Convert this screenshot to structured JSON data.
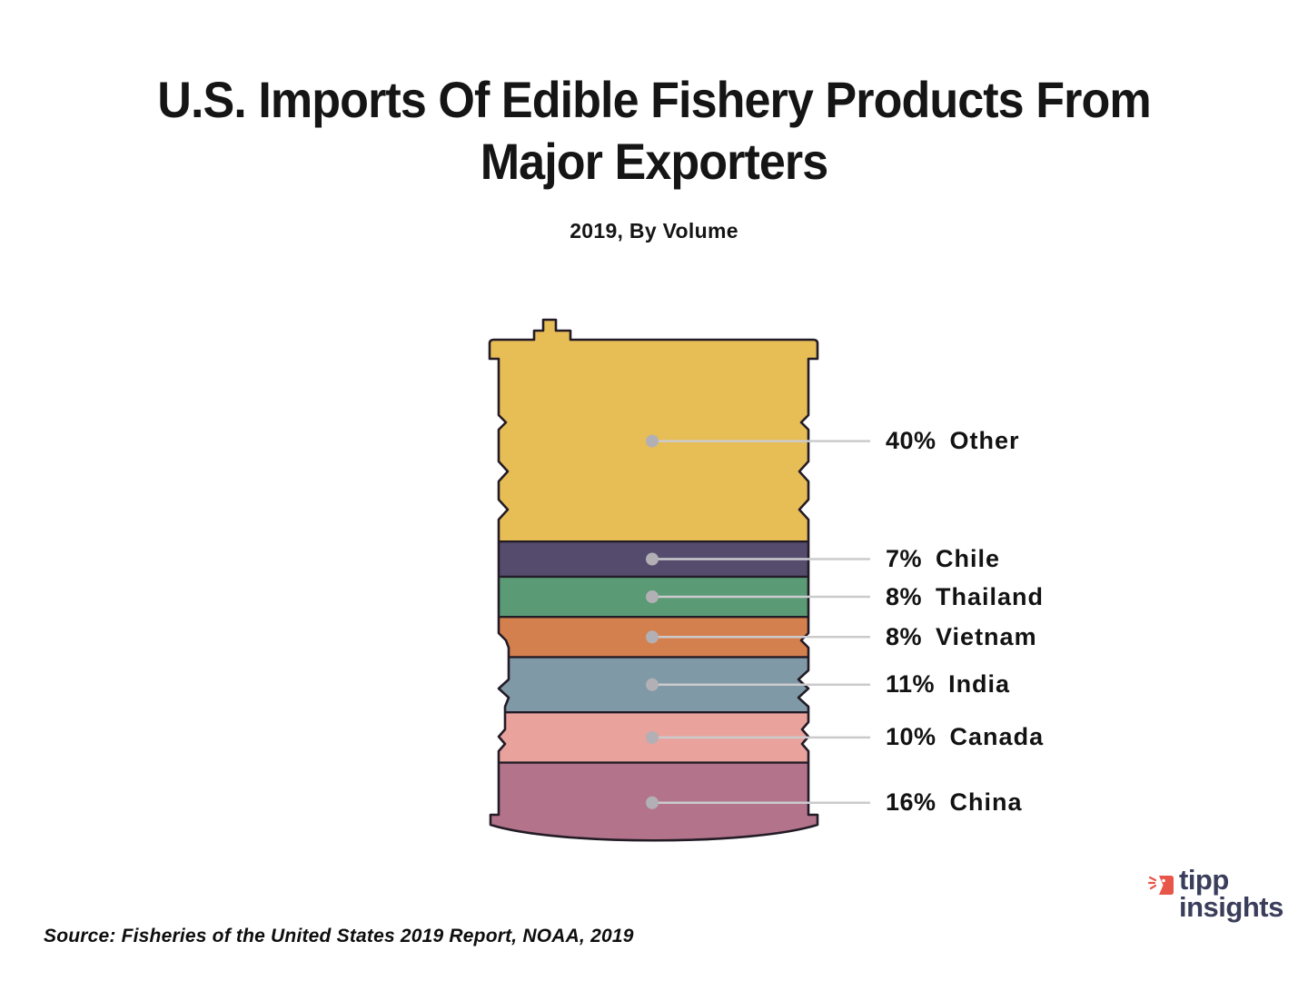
{
  "title": {
    "line1": "U.S. Imports Of Edible Fishery Products From",
    "line2": "Major Exporters"
  },
  "subtitle": "2019, By Volume",
  "source_note": "Source: Fisheries of the United States 2019 Report, NOAA, 2019",
  "logo": {
    "line1": "tipp",
    "line2": "insights",
    "icon": "tippinsights-flag-icon",
    "brand_navy": "#3a3e5b",
    "brand_red": "#e8564a"
  },
  "chart_data": {
    "type": "pie",
    "variant": "stacked-barrel-pictogram",
    "title": "U.S. Imports Of Edible Fishery Products From Major Exporters",
    "subtitle": "2019, By Volume",
    "unit": "%",
    "legend_position": "right-callouts",
    "outline_color": "#231c26",
    "callout_line_color": "#cbcbce",
    "callout_dot_color": "#b2b0b4",
    "segments": [
      {
        "label": "Other",
        "value": 40,
        "value_text": "40%",
        "color": "#e7bd56"
      },
      {
        "label": "Chile",
        "value": 7,
        "value_text": "7%",
        "color": "#554b6d"
      },
      {
        "label": "Thailand",
        "value": 8,
        "value_text": "8%",
        "color": "#5a9a75"
      },
      {
        "label": "Vietnam",
        "value": 8,
        "value_text": "8%",
        "color": "#d47f4e"
      },
      {
        "label": "India",
        "value": 11,
        "value_text": "11%",
        "color": "#7f99a6"
      },
      {
        "label": "Canada",
        "value": 10,
        "value_text": "10%",
        "color": "#e9a29c"
      },
      {
        "label": "China",
        "value": 16,
        "value_text": "16%",
        "color": "#b3748b"
      }
    ]
  }
}
